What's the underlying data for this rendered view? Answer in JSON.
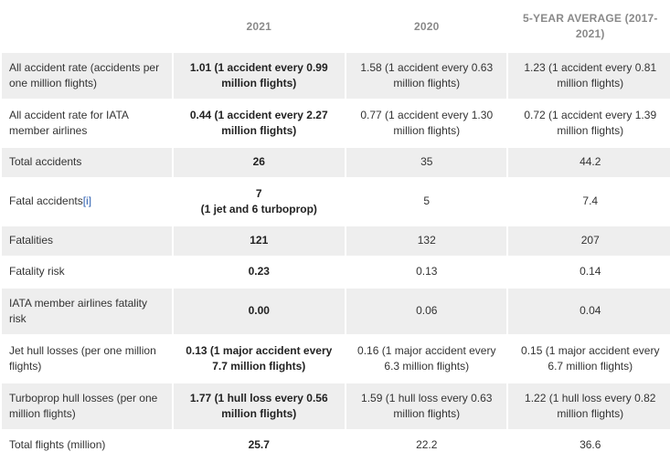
{
  "headers": [
    "",
    "2021",
    "2020",
    "5-YEAR AVERAGE (2017-2021)"
  ],
  "rows": [
    {
      "label": "All accident rate (accidents per one million flights)",
      "v2021": "1.01 (1 accident every 0.99 million flights)",
      "v2020": "1.58 (1 accident every 0.63 million flights)",
      "avg": "1.23 (1 accident every 0.81 million flights)"
    },
    {
      "label": "All accident rate for IATA member airlines",
      "v2021": "0.44 (1 accident every 2.27 million flights)",
      "v2020": "0.77 (1 accident every 1.30 million flights)",
      "avg": "0.72 (1 accident every 1.39 million flights)"
    },
    {
      "label": "Total accidents",
      "v2021": "26",
      "v2020": "35",
      "avg": "44.2"
    },
    {
      "label": "Fatal accidents",
      "footnote": "[i]",
      "v2021": "7",
      "v2021_sub": "(1 jet and 6 turboprop)",
      "v2020": "5",
      "avg": "7.4"
    },
    {
      "label": "Fatalities",
      "v2021": "121",
      "v2020": "132",
      "avg": "207"
    },
    {
      "label": "Fatality risk",
      "v2021": "0.23",
      "v2020": "0.13",
      "avg": "0.14"
    },
    {
      "label": "IATA member airlines fatality risk",
      "v2021": "0.00",
      "v2020": "0.06",
      "avg": "0.04"
    },
    {
      "label": "Jet hull losses (per one million flights)",
      "v2021": "0.13 (1 major accident every 7.7 million flights)",
      "v2020": "0.16 (1 major accident every 6.3 million flights)",
      "avg": "0.15 (1 major accident every 6.7 million flights)"
    },
    {
      "label": "Turboprop hull losses (per one million flights)",
      "v2021": "1.77 (1 hull loss every 0.56 million flights)",
      "v2020": "1.59 (1 hull loss every 0.63 million flights)",
      "avg": "1.22 (1 hull loss every 0.82 million flights)"
    },
    {
      "label": "Total flights (million)",
      "v2021": "25.7",
      "v2020": "22.2",
      "avg": "36.6"
    }
  ]
}
